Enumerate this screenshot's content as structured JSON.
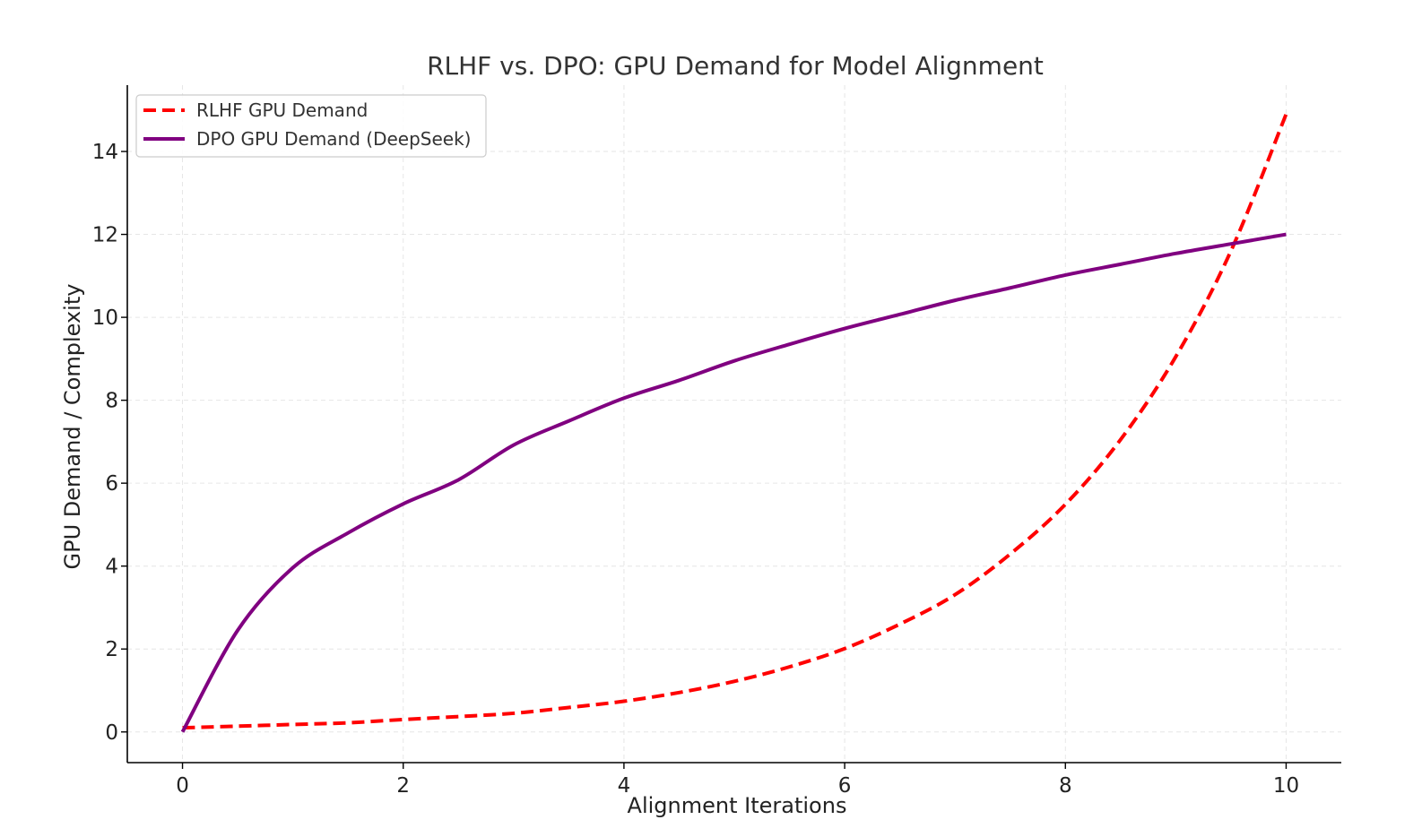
{
  "chart_data": {
    "type": "line",
    "title": "RLHF vs. DPO: GPU Demand for Model Alignment",
    "xlabel": "Alignment Iterations",
    "ylabel": "GPU Demand / Complexity",
    "xlim": [
      -0.5,
      10.5
    ],
    "ylim": [
      -0.74,
      15.6
    ],
    "xticks": [
      0,
      2,
      4,
      6,
      8,
      10
    ],
    "yticks": [
      0,
      2,
      4,
      6,
      8,
      10,
      12,
      14
    ],
    "grid": true,
    "legend_position": "top-left",
    "x": [
      0,
      0.5,
      1,
      1.5,
      2,
      2.5,
      3,
      3.5,
      4,
      4.5,
      5,
      5.5,
      6,
      6.5,
      7,
      7.5,
      8,
      8.5,
      9,
      9.5,
      10
    ],
    "series": [
      {
        "name": "RLHF GPU Demand",
        "color": "#ff0000",
        "style": "dashed",
        "values": [
          0.1,
          0.14,
          0.18,
          0.22,
          0.3,
          0.37,
          0.45,
          0.59,
          0.74,
          0.95,
          1.22,
          1.57,
          2.01,
          2.6,
          3.31,
          4.29,
          5.49,
          7.05,
          9.05,
          11.6,
          14.9
        ]
      },
      {
        "name": "DPO GPU Demand (DeepSeek)",
        "color": "#800080",
        "style": "solid",
        "values": [
          0.0,
          2.45,
          3.96,
          4.8,
          5.5,
          6.08,
          6.92,
          7.5,
          8.05,
          8.48,
          8.95,
          9.35,
          9.73,
          10.07,
          10.41,
          10.71,
          11.02,
          11.28,
          11.54,
          11.77,
          12.0
        ]
      }
    ]
  }
}
